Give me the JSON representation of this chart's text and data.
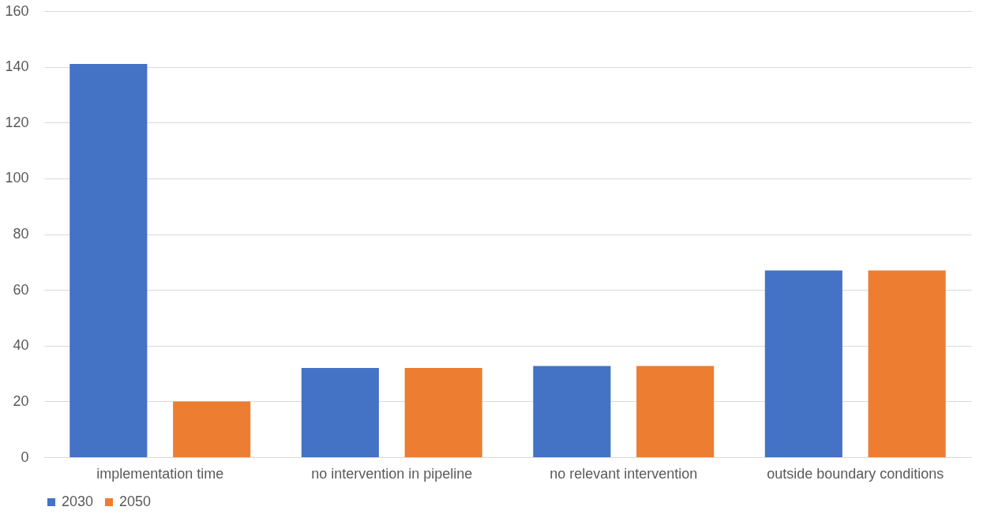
{
  "chart_data": {
    "type": "bar",
    "categories": [
      "implementation time",
      "no intervention in pipeline",
      "no relevant intervention",
      "outside boundary conditions"
    ],
    "series": [
      {
        "name": "2030",
        "color": "#4472c4",
        "values": [
          141,
          32,
          32.7,
          67
        ]
      },
      {
        "name": "2050",
        "color": "#ed7d31",
        "values": [
          20,
          32,
          32.7,
          67
        ]
      }
    ],
    "ylim": [
      0,
      160
    ],
    "yticks": [
      0,
      20,
      40,
      60,
      80,
      100,
      120,
      140,
      160
    ],
    "grid": "y",
    "legend": "bottom"
  }
}
